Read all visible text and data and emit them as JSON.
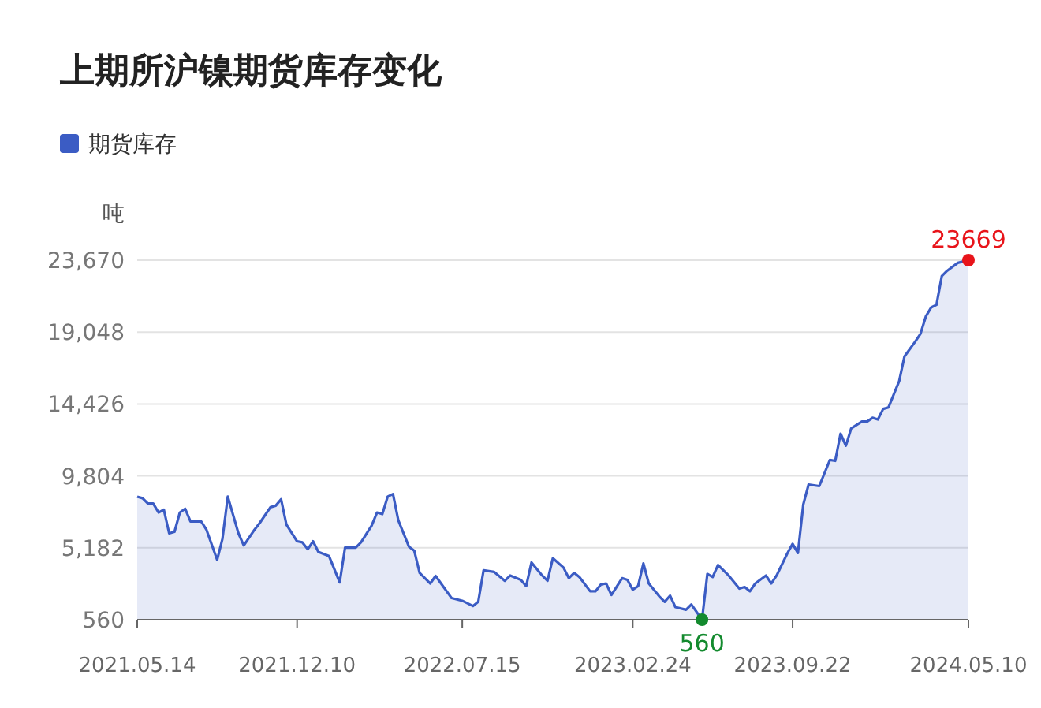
{
  "chart_data": {
    "type": "area",
    "title": "上期所沪镍期货库存变化",
    "ylabel": "吨",
    "legend": "top left",
    "grid": "y",
    "x": [
      "2021-05-14",
      "2021-05-21",
      "2021-05-28",
      "2021-06-04",
      "2021-06-11",
      "2021-06-18",
      "2021-06-25",
      "2021-07-02",
      "2021-07-09",
      "2021-07-16",
      "2021-07-23",
      "2021-08-06",
      "2021-08-13",
      "2021-08-27",
      "2021-09-03",
      "2021-09-10",
      "2021-09-24",
      "2021-10-01",
      "2021-10-15",
      "2021-10-22",
      "2021-11-05",
      "2021-11-12",
      "2021-11-19",
      "2021-11-26",
      "2021-12-10",
      "2021-12-17",
      "2021-12-24",
      "2021-12-31",
      "2022-01-07",
      "2022-01-21",
      "2022-02-04",
      "2022-02-11",
      "2022-02-25",
      "2022-03-04",
      "2022-03-18",
      "2022-03-25",
      "2022-04-01",
      "2022-04-08",
      "2022-04-15",
      "2022-04-22",
      "2022-05-06",
      "2022-05-13",
      "2022-05-20",
      "2022-06-03",
      "2022-06-10",
      "2022-07-01",
      "2022-07-15",
      "2022-07-29",
      "2022-08-05",
      "2022-08-12",
      "2022-08-26",
      "2022-09-09",
      "2022-09-16",
      "2022-09-30",
      "2022-10-07",
      "2022-10-14",
      "2022-10-28",
      "2022-11-04",
      "2022-11-11",
      "2022-11-25",
      "2022-12-02",
      "2022-12-09",
      "2022-12-16",
      "2022-12-30",
      "2023-01-06",
      "2023-01-13",
      "2023-01-20",
      "2023-01-27",
      "2023-02-10",
      "2023-02-17",
      "2023-02-24",
      "2023-03-03",
      "2023-03-10",
      "2023-03-17",
      "2023-03-31",
      "2023-04-07",
      "2023-04-14",
      "2023-04-21",
      "2023-05-05",
      "2023-05-12",
      "2023-05-26",
      "2023-06-02",
      "2023-06-09",
      "2023-06-16",
      "2023-06-30",
      "2023-07-14",
      "2023-07-21",
      "2023-07-28",
      "2023-08-04",
      "2023-08-18",
      "2023-08-25",
      "2023-09-01",
      "2023-09-15",
      "2023-09-22",
      "2023-09-29",
      "2023-10-06",
      "2023-10-13",
      "2023-10-27",
      "2023-11-10",
      "2023-11-17",
      "2023-11-24",
      "2023-12-01",
      "2023-12-08",
      "2023-12-22",
      "2023-12-29",
      "2024-01-05",
      "2024-01-12",
      "2024-01-19",
      "2024-01-26",
      "2024-02-02",
      "2024-02-09",
      "2024-02-16",
      "2024-03-01",
      "2024-03-08",
      "2024-03-15",
      "2024-03-22",
      "2024-03-29",
      "2024-04-05",
      "2024-04-12",
      "2024-04-26",
      "2024-05-10"
    ],
    "series": [
      {
        "name": "期货库存",
        "color": "#3b5cc4",
        "values": [
          8470,
          8370,
          8030,
          8030,
          7450,
          7630,
          6110,
          6210,
          7450,
          7690,
          6880,
          6880,
          6340,
          4410,
          5760,
          8470,
          6110,
          5330,
          6340,
          6780,
          7790,
          7890,
          8300,
          6670,
          5600,
          5530,
          5090,
          5600,
          4920,
          4650,
          2960,
          5190,
          5190,
          5530,
          6610,
          7450,
          7350,
          8470,
          8640,
          6950,
          5250,
          4990,
          3570,
          2890,
          3370,
          1950,
          1780,
          1440,
          1710,
          3730,
          3630,
          3060,
          3400,
          3120,
          2720,
          4240,
          3400,
          3060,
          4510,
          3910,
          3230,
          3570,
          3300,
          2390,
          2390,
          2820,
          2890,
          2150,
          3230,
          3120,
          2490,
          2720,
          4180,
          2890,
          2050,
          1710,
          2110,
          1370,
          1200,
          1540,
          560,
          3500,
          3300,
          4080,
          3400,
          2560,
          2660,
          2390,
          2890,
          3400,
          2890,
          3400,
          4820,
          5430,
          4850,
          7960,
          9250,
          9150,
          10830,
          10770,
          12520,
          11740,
          12860,
          13300,
          13300,
          13540,
          13430,
          14110,
          14210,
          15060,
          15900,
          17490,
          18430,
          18940,
          20050,
          20630,
          20800,
          22650,
          22990,
          23500,
          23669
        ]
      }
    ],
    "xlim": [
      "2021-05-14",
      "2024-05-10"
    ],
    "xticks": [
      {
        "value": "2021-05-14",
        "label": "2021.05.14"
      },
      {
        "value": "2021-12-10",
        "label": "2021.12.10"
      },
      {
        "value": "2022-07-15",
        "label": "2022.07.15"
      },
      {
        "value": "2023-02-24",
        "label": "2023.02.24"
      },
      {
        "value": "2023-09-22",
        "label": "2023.09.22"
      },
      {
        "value": "2024-05-10",
        "label": "2024.05.10"
      }
    ],
    "ylim": [
      560,
      23670
    ],
    "yticks": [
      560,
      {
        "value": 5182,
        "label": "5,182"
      },
      {
        "value": 9804,
        "label": "9,804"
      },
      {
        "value": 14426,
        "label": "14,426"
      },
      {
        "value": 19048,
        "label": "19,048"
      },
      {
        "value": 23670,
        "label": "23,670"
      }
    ],
    "annotations": [
      {
        "text": "23669",
        "x": "2024-05-10",
        "y": 23669
      },
      {
        "text": "560",
        "x": "2023-05-26",
        "y": 560
      }
    ]
  }
}
